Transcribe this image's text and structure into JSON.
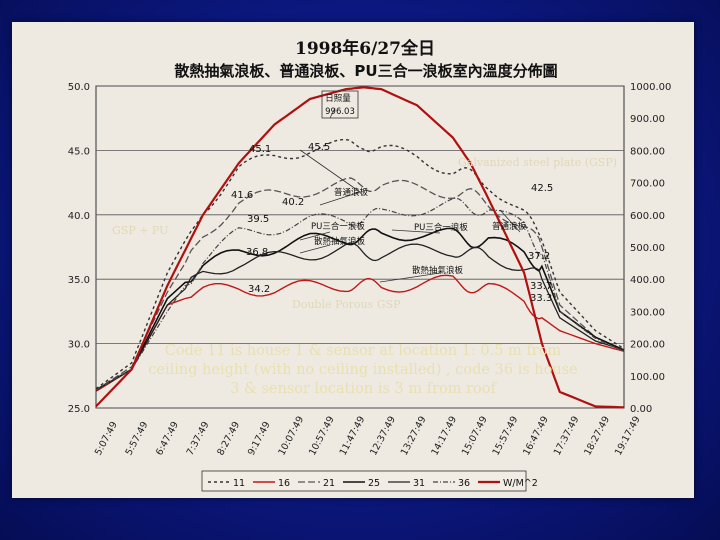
{
  "slide": {
    "caption": "Code 11 is house 1 & sensor at location 1: 0.5 m from ceiling height (with no ceiling installed) , code 36 is house 3 & sensor location is 3 m from roof",
    "annotations": {
      "gsp": "Galvanized steel plate (GSP)",
      "gsp_pu": "GSP + PU",
      "double_porous": "Double Porous GSP"
    }
  },
  "chart_data": {
    "type": "line",
    "title": "1998年6/27全日",
    "subtitle": "散熱抽氣浪板、普通浪板、PU三合一浪板室內溫度分佈圖",
    "xlabel": "",
    "ylabel": "",
    "ylim": [
      25.0,
      50.0
    ],
    "y2lim": [
      0,
      1000
    ],
    "yticks": [
      "50.0",
      "45.0",
      "40.0",
      "35.0",
      "30.0",
      "25.0"
    ],
    "y2ticks": [
      "1000.00",
      "900.00",
      "800.00",
      "700.00",
      "600.00",
      "500.00",
      "400.00",
      "300.00",
      "200.00",
      "100.00",
      "0.00"
    ],
    "xticks": [
      "5:07:49",
      "5:57:49",
      "6:47:49",
      "7:37:49",
      "8:27:49",
      "9:17:49",
      "10:07:49",
      "10:57:49",
      "11:47:49",
      "12:37:49",
      "13:27:49",
      "14:17:49",
      "15:07:49",
      "15:57:49",
      "16:47:49",
      "17:37:49",
      "18:27:49",
      "19:17:49"
    ],
    "x_hours": [
      5.0,
      6.0,
      7.0,
      8.0,
      9.0,
      10.0,
      11.0,
      12.0,
      12.5,
      13.0,
      14.0,
      15.0,
      15.5,
      16.0,
      17.0,
      17.5,
      18.0,
      19.0,
      19.8
    ],
    "series": [
      {
        "name": "11",
        "axis": "left",
        "color": "#333333",
        "values": [
          26.5,
          28.5,
          35.5,
          40.5,
          43.5,
          44.5,
          45.2,
          45.3,
          45.6,
          45.0,
          44.5,
          43.5,
          43.0,
          42.5,
          40.0,
          38.0,
          34.0,
          31.0,
          29.6
        ]
      },
      {
        "name": "16",
        "axis": "left",
        "color": "#c01818",
        "values": [
          26.3,
          28.0,
          33.0,
          34.0,
          34.3,
          34.2,
          34.4,
          34.6,
          34.5,
          34.5,
          34.6,
          34.8,
          34.5,
          34.2,
          33.5,
          32.0,
          31.0,
          30.0,
          29.4
        ]
      },
      {
        "name": "21",
        "axis": "left",
        "color": "#555555",
        "values": [
          26.4,
          28.2,
          34.0,
          38.5,
          41.0,
          41.5,
          42.0,
          42.3,
          42.4,
          42.3,
          42.0,
          41.8,
          41.5,
          41.0,
          39.0,
          37.5,
          33.0,
          30.5,
          29.5
        ]
      },
      {
        "name": "25",
        "axis": "left",
        "color": "#111111",
        "values": [
          26.4,
          28.0,
          33.5,
          36.0,
          37.0,
          37.5,
          38.0,
          38.2,
          38.3,
          38.4,
          38.6,
          38.4,
          38.0,
          38.0,
          37.0,
          36.0,
          32.5,
          30.5,
          29.5
        ]
      },
      {
        "name": "31",
        "axis": "left",
        "color": "#222222",
        "values": [
          26.4,
          28.0,
          33.0,
          35.5,
          36.3,
          36.6,
          37.0,
          37.4,
          37.0,
          37.0,
          37.2,
          37.3,
          37.0,
          36.8,
          36.0,
          35.0,
          32.0,
          30.2,
          29.5
        ]
      },
      {
        "name": "36",
        "axis": "left",
        "color": "#444444",
        "values": [
          26.4,
          28.0,
          32.5,
          36.5,
          38.5,
          39.0,
          39.5,
          39.6,
          39.8,
          40.0,
          40.5,
          40.8,
          40.5,
          40.5,
          39.0,
          37.0,
          32.5,
          30.4,
          29.4
        ]
      },
      {
        "name": "W/M^2",
        "axis": "right",
        "color": "#b01010",
        "values": [
          5,
          120,
          380,
          600,
          760,
          880,
          960,
          990,
          996.03,
          990,
          940,
          840,
          760,
          650,
          420,
          200,
          50,
          5,
          2
        ]
      }
    ],
    "annotations_zh": [
      {
        "text": "日照量"
      },
      {
        "text": "996.03"
      },
      {
        "text": "普通浪板"
      },
      {
        "text": "PU三合一浪板"
      },
      {
        "text": "散熱抽氣浪板"
      },
      {
        "text": "PU三合一浪板"
      },
      {
        "text": "普通浪板"
      },
      {
        "text": "散熱抽氣浪板"
      }
    ],
    "data_labels": [
      "45.1",
      "45.5",
      "42.5",
      "41.6",
      "40.2",
      "39.5",
      "36.8",
      "37.2",
      "34.2",
      "33.7",
      "33.3"
    ],
    "legend_position": "bottom",
    "grid": true
  }
}
